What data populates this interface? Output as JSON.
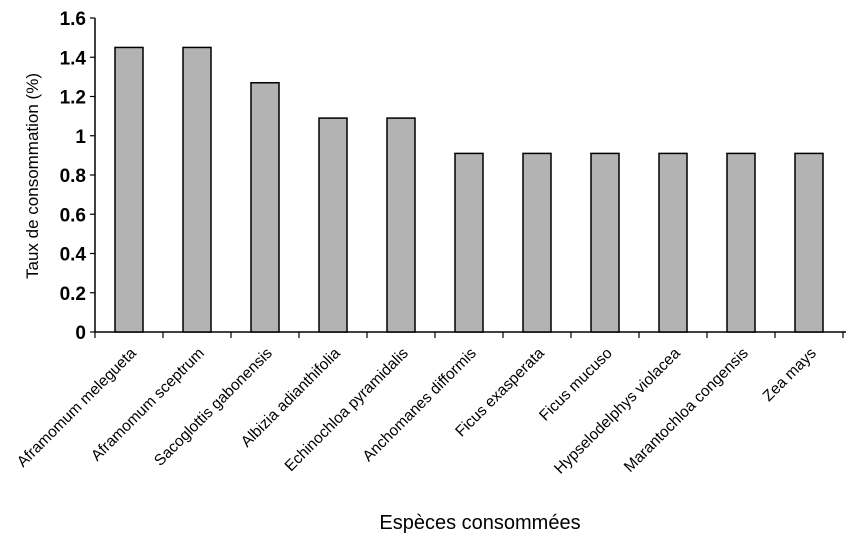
{
  "chart_data": {
    "type": "bar",
    "title": "",
    "xlabel": "Espèces consommées",
    "ylabel": "Taux de consommation (%)",
    "ylim": [
      0,
      1.6
    ],
    "yticks": [
      "0",
      "0.2",
      "0.4",
      "0.6",
      "0.8",
      "1",
      "1.2",
      "1.4",
      "1.6"
    ],
    "categories": [
      "Aframomum melegueta",
      "Aframomum sceptrum",
      "Sacoglottis gabonensis",
      "Albizia adianthifolia",
      "Echinochloa pyramidalis",
      "Anchomanes difformis",
      "Ficus exasperata",
      "Ficus mucuso",
      "Hypselodelphys violacea",
      "Marantochloa congensis",
      "Zea mays"
    ],
    "values": [
      1.45,
      1.45,
      1.27,
      1.09,
      1.09,
      0.91,
      0.91,
      0.91,
      0.91,
      0.91,
      0.91
    ],
    "grid": false,
    "legend": "none",
    "colors": {
      "bar_fill": "#b3b3b3",
      "bar_stroke": "#000000",
      "axis": "#000000"
    }
  }
}
